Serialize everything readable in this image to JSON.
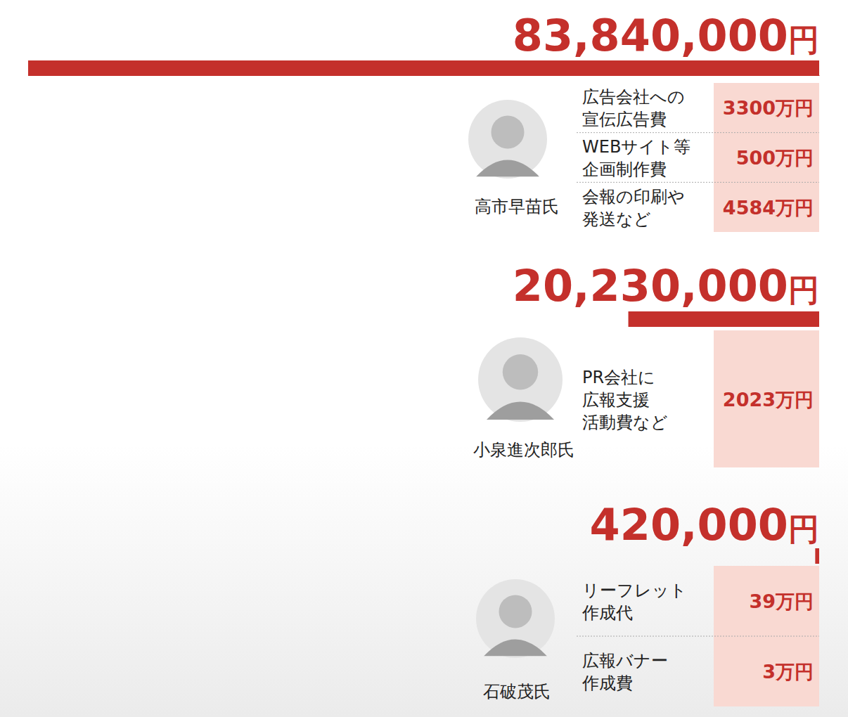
{
  "chart_data": {
    "type": "bar",
    "orientation": "horizontal",
    "categories": [
      "高市早苗氏",
      "小泉進次郎氏",
      "石破茂氏"
    ],
    "values": [
      83840000,
      20230000,
      420000
    ],
    "value_labels": [
      "83,840,000円",
      "20,230,000円",
      "420,000円"
    ],
    "color": "#c4302b",
    "xlim": [
      0,
      83840000
    ],
    "tick_labels": false,
    "data_labels": true,
    "breakdown": [
      [
        {
          "label": [
            "広告会社への",
            "宣伝広告費"
          ],
          "amount": "3300万円"
        },
        {
          "label": [
            "WEBサイト等",
            "企画制作費"
          ],
          "amount": "500万円"
        },
        {
          "label": [
            "会報の印刷や",
            "発送など"
          ],
          "amount": "4584万円"
        }
      ],
      [
        {
          "label": [
            "PR会社に",
            "広報支援",
            "活動費など"
          ],
          "amount": "2023万円"
        }
      ],
      [
        {
          "label": [
            "リーフレット",
            "作成代"
          ],
          "amount": "39万円"
        },
        {
          "label": [
            "広報バナー",
            "作成費"
          ],
          "amount": "3万円"
        }
      ]
    ]
  }
}
